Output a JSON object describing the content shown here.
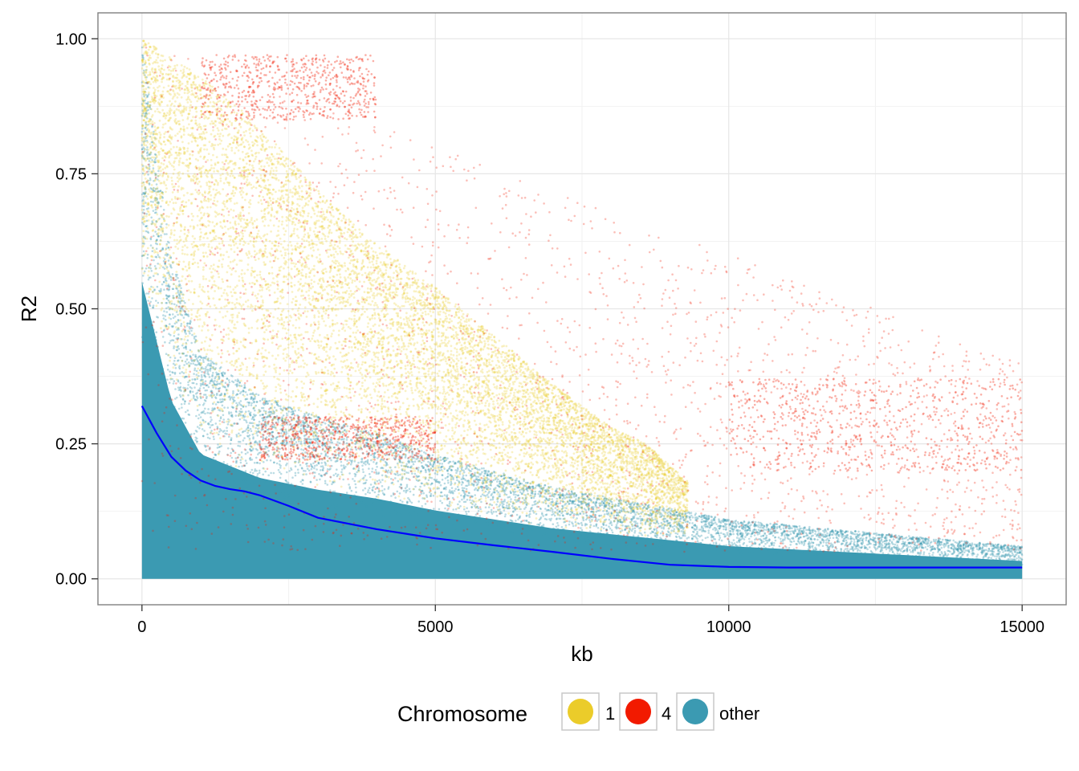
{
  "chart_data": {
    "type": "scatter",
    "title": "",
    "xlabel": "kb",
    "ylabel": "R2",
    "xlim": [
      -750,
      15750
    ],
    "ylim": [
      -0.048,
      1.048
    ],
    "x_ticks": [
      0,
      5000,
      10000,
      15000
    ],
    "x_tick_labels": [
      "0",
      "5000",
      "10000",
      "15000"
    ],
    "y_ticks": [
      0,
      0.25,
      0.5,
      0.75,
      1.0
    ],
    "y_tick_labels": [
      "0.00",
      "0.25",
      "0.50",
      "0.75",
      "1.00"
    ],
    "grid": true,
    "legend": {
      "title": "Chromosome",
      "placement": "bottom",
      "entries": [
        {
          "label": "1",
          "color": "#EBCC2A"
        },
        {
          "label": "4",
          "color": "#F21A00"
        },
        {
          "label": "other",
          "color": "#3B9AB2"
        }
      ]
    },
    "series": [
      {
        "name": "1",
        "color": "#EBCC2A",
        "envelope_x": [
          0,
          1000,
          2000,
          3000,
          4000,
          5000,
          6000,
          7000,
          8000,
          8600,
          9300
        ],
        "envelope_upper": [
          1.0,
          0.93,
          0.84,
          0.72,
          0.62,
          0.54,
          0.45,
          0.36,
          0.28,
          0.25,
          0.18
        ]
      },
      {
        "name": "4",
        "color": "#F21A00",
        "x_range": [
          0,
          15000
        ],
        "dense_bands": [
          {
            "x": [
              1000,
              4000
            ],
            "y": [
              0.85,
              0.97
            ]
          },
          {
            "x": [
              2000,
              5000
            ],
            "y": [
              0.22,
              0.3
            ]
          },
          {
            "x": [
              10000,
              15000
            ],
            "y": [
              0.2,
              0.37
            ]
          }
        ]
      },
      {
        "name": "other",
        "color": "#3B9AB2",
        "envelope_x": [
          0,
          500,
          1000,
          2000,
          3000,
          4000,
          5000,
          6000,
          7000,
          8000,
          9000,
          10000,
          11000,
          12000,
          13000,
          14000,
          15000
        ],
        "envelope_upper": [
          1.0,
          0.6,
          0.42,
          0.34,
          0.3,
          0.27,
          0.23,
          0.2,
          0.17,
          0.15,
          0.13,
          0.11,
          0.1,
          0.09,
          0.08,
          0.07,
          0.06
        ]
      },
      {
        "name": "",
        "type": "line",
        "color": "#0000FF",
        "x": [
          0,
          250,
          500,
          750,
          1000,
          1250,
          1500,
          1750,
          2000,
          2500,
          3000,
          4000,
          5000,
          6000,
          7000,
          8000,
          9000,
          10000,
          11000,
          12000,
          13000,
          14000,
          15000
        ],
        "y": [
          0.32,
          0.27,
          0.226,
          0.2,
          0.182,
          0.172,
          0.166,
          0.162,
          0.155,
          0.135,
          0.113,
          0.092,
          0.075,
          0.062,
          0.05,
          0.037,
          0.026,
          0.022,
          0.021,
          0.021,
          0.021,
          0.021,
          0.021
        ]
      }
    ]
  }
}
